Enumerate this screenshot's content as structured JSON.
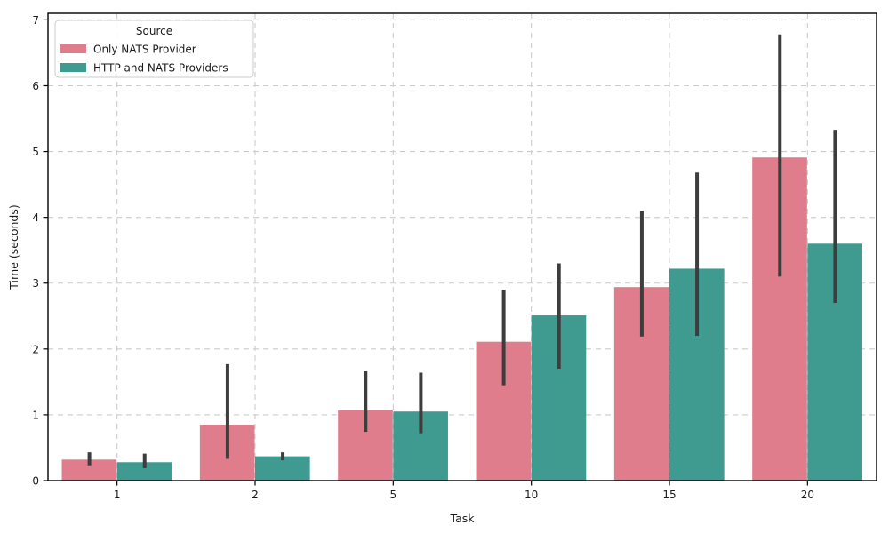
{
  "chart_data": {
    "type": "bar",
    "title": "",
    "xlabel": "Task",
    "ylabel": "Time (seconds)",
    "categories": [
      "1",
      "2",
      "5",
      "10",
      "15",
      "20"
    ],
    "series": [
      {
        "name": "Only NATS Provider",
        "color": "#e07d8c",
        "values": [
          0.32,
          0.85,
          1.07,
          2.11,
          2.94,
          4.91
        ],
        "err_low": [
          0.22,
          0.33,
          0.74,
          1.45,
          2.19,
          3.1
        ],
        "err_high": [
          0.43,
          1.77,
          1.66,
          2.9,
          4.1,
          6.78
        ]
      },
      {
        "name": "HTTP and NATS Providers",
        "color": "#3f9a90",
        "values": [
          0.28,
          0.37,
          1.05,
          2.51,
          3.22,
          3.6
        ],
        "err_low": [
          0.19,
          0.31,
          0.72,
          1.7,
          2.2,
          2.7
        ],
        "err_high": [
          0.41,
          0.43,
          1.64,
          3.3,
          4.68,
          5.33
        ]
      }
    ],
    "legend": {
      "title": "Source",
      "position": "upper-left"
    },
    "ylim": [
      0,
      7.1
    ],
    "yticks": [
      0,
      1,
      2,
      3,
      4,
      5,
      6,
      7
    ],
    "grid": true,
    "grid_color": "#cccccc",
    "grid_style": "dashed",
    "error_bar_color": "#3d3d3d",
    "spine_color": "#000000",
    "background_color": "#ffffff"
  }
}
